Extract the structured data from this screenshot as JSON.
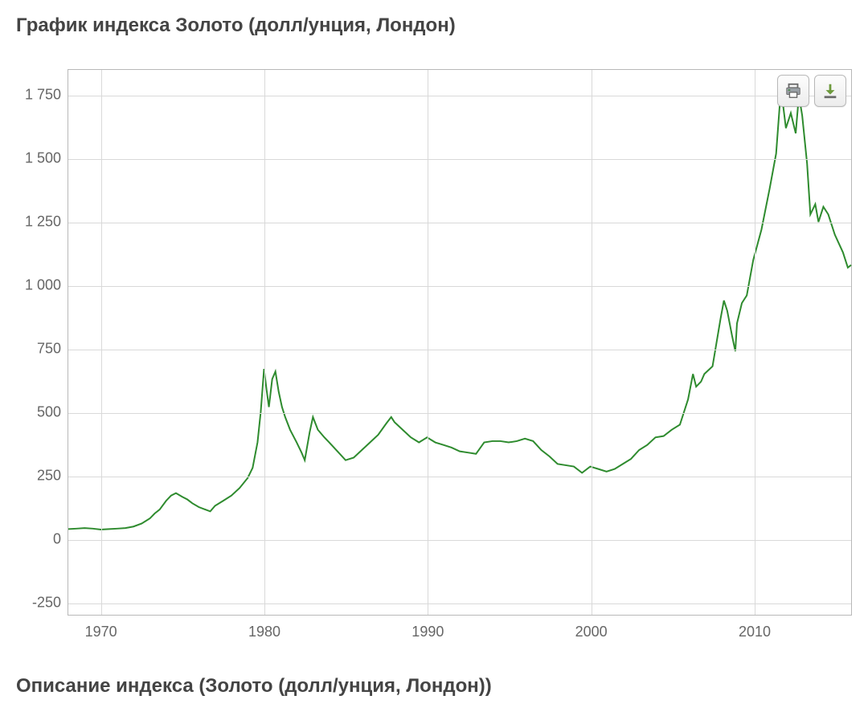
{
  "page": {
    "title": "График индекса Золото (долл/унция, Лондон)",
    "footer": "Описание индекса  (Золото (долл/унция, Лондон))"
  },
  "chart": {
    "type": "line",
    "line_color": "#2e8b2e",
    "line_width": 2,
    "background_color": "#ffffff",
    "border_color": "#b8b8b8",
    "grid_color": "#d9d9d9",
    "label_color": "#666666",
    "label_fontsize": 18,
    "xlim": [
      1968,
      2016
    ],
    "ylim": [
      -300,
      1850
    ],
    "yticks": [
      -250,
      0,
      250,
      500,
      750,
      1000,
      1250,
      1500,
      1750
    ],
    "ytick_labels": [
      "-250",
      "0",
      "250",
      "500",
      "750",
      "1 000",
      "1 250",
      "1 500",
      "1 750"
    ],
    "xticks": [
      1970,
      1980,
      1990,
      2000,
      2010
    ],
    "xtick_labels": [
      "1970",
      "1980",
      "1990",
      "2000",
      "2010"
    ],
    "series": [
      {
        "x": 1968.0,
        "y": 38
      },
      {
        "x": 1968.5,
        "y": 40
      },
      {
        "x": 1969.0,
        "y": 42
      },
      {
        "x": 1969.5,
        "y": 40
      },
      {
        "x": 1970.0,
        "y": 36
      },
      {
        "x": 1970.5,
        "y": 38
      },
      {
        "x": 1971.0,
        "y": 40
      },
      {
        "x": 1971.5,
        "y": 42
      },
      {
        "x": 1972.0,
        "y": 48
      },
      {
        "x": 1972.5,
        "y": 60
      },
      {
        "x": 1973.0,
        "y": 80
      },
      {
        "x": 1973.3,
        "y": 100
      },
      {
        "x": 1973.6,
        "y": 115
      },
      {
        "x": 1974.0,
        "y": 150
      },
      {
        "x": 1974.3,
        "y": 170
      },
      {
        "x": 1974.6,
        "y": 180
      },
      {
        "x": 1975.0,
        "y": 165
      },
      {
        "x": 1975.3,
        "y": 155
      },
      {
        "x": 1975.6,
        "y": 140
      },
      {
        "x": 1976.0,
        "y": 125
      },
      {
        "x": 1976.4,
        "y": 115
      },
      {
        "x": 1976.7,
        "y": 108
      },
      {
        "x": 1977.0,
        "y": 130
      },
      {
        "x": 1977.5,
        "y": 150
      },
      {
        "x": 1978.0,
        "y": 170
      },
      {
        "x": 1978.5,
        "y": 200
      },
      {
        "x": 1979.0,
        "y": 240
      },
      {
        "x": 1979.3,
        "y": 280
      },
      {
        "x": 1979.6,
        "y": 380
      },
      {
        "x": 1979.8,
        "y": 500
      },
      {
        "x": 1980.0,
        "y": 670
      },
      {
        "x": 1980.15,
        "y": 590
      },
      {
        "x": 1980.3,
        "y": 520
      },
      {
        "x": 1980.5,
        "y": 630
      },
      {
        "x": 1980.7,
        "y": 660
      },
      {
        "x": 1980.9,
        "y": 580
      },
      {
        "x": 1981.1,
        "y": 520
      },
      {
        "x": 1981.3,
        "y": 480
      },
      {
        "x": 1981.6,
        "y": 430
      },
      {
        "x": 1982.0,
        "y": 380
      },
      {
        "x": 1982.3,
        "y": 340
      },
      {
        "x": 1982.5,
        "y": 310
      },
      {
        "x": 1982.8,
        "y": 420
      },
      {
        "x": 1983.0,
        "y": 480
      },
      {
        "x": 1983.3,
        "y": 430
      },
      {
        "x": 1983.7,
        "y": 400
      },
      {
        "x": 1984.0,
        "y": 380
      },
      {
        "x": 1984.5,
        "y": 345
      },
      {
        "x": 1985.0,
        "y": 310
      },
      {
        "x": 1985.5,
        "y": 320
      },
      {
        "x": 1986.0,
        "y": 350
      },
      {
        "x": 1986.5,
        "y": 380
      },
      {
        "x": 1987.0,
        "y": 410
      },
      {
        "x": 1987.5,
        "y": 455
      },
      {
        "x": 1987.8,
        "y": 480
      },
      {
        "x": 1988.0,
        "y": 460
      },
      {
        "x": 1988.5,
        "y": 430
      },
      {
        "x": 1989.0,
        "y": 400
      },
      {
        "x": 1989.5,
        "y": 380
      },
      {
        "x": 1990.0,
        "y": 400
      },
      {
        "x": 1990.5,
        "y": 380
      },
      {
        "x": 1991.0,
        "y": 370
      },
      {
        "x": 1991.5,
        "y": 360
      },
      {
        "x": 1992.0,
        "y": 345
      },
      {
        "x": 1992.5,
        "y": 340
      },
      {
        "x": 1993.0,
        "y": 335
      },
      {
        "x": 1993.5,
        "y": 380
      },
      {
        "x": 1994.0,
        "y": 385
      },
      {
        "x": 1994.5,
        "y": 385
      },
      {
        "x": 1995.0,
        "y": 380
      },
      {
        "x": 1995.5,
        "y": 385
      },
      {
        "x": 1996.0,
        "y": 395
      },
      {
        "x": 1996.5,
        "y": 385
      },
      {
        "x": 1997.0,
        "y": 350
      },
      {
        "x": 1997.5,
        "y": 325
      },
      {
        "x": 1998.0,
        "y": 295
      },
      {
        "x": 1998.5,
        "y": 290
      },
      {
        "x": 1999.0,
        "y": 285
      },
      {
        "x": 1999.5,
        "y": 260
      },
      {
        "x": 2000.0,
        "y": 285
      },
      {
        "x": 2000.5,
        "y": 275
      },
      {
        "x": 2001.0,
        "y": 265
      },
      {
        "x": 2001.5,
        "y": 275
      },
      {
        "x": 2002.0,
        "y": 295
      },
      {
        "x": 2002.5,
        "y": 315
      },
      {
        "x": 2003.0,
        "y": 350
      },
      {
        "x": 2003.5,
        "y": 370
      },
      {
        "x": 2004.0,
        "y": 400
      },
      {
        "x": 2004.5,
        "y": 405
      },
      {
        "x": 2005.0,
        "y": 430
      },
      {
        "x": 2005.5,
        "y": 450
      },
      {
        "x": 2006.0,
        "y": 550
      },
      {
        "x": 2006.3,
        "y": 650
      },
      {
        "x": 2006.5,
        "y": 600
      },
      {
        "x": 2006.8,
        "y": 620
      },
      {
        "x": 2007.0,
        "y": 650
      },
      {
        "x": 2007.5,
        "y": 680
      },
      {
        "x": 2008.0,
        "y": 870
      },
      {
        "x": 2008.2,
        "y": 940
      },
      {
        "x": 2008.4,
        "y": 900
      },
      {
        "x": 2008.7,
        "y": 800
      },
      {
        "x": 2008.9,
        "y": 740
      },
      {
        "x": 2009.0,
        "y": 850
      },
      {
        "x": 2009.3,
        "y": 930
      },
      {
        "x": 2009.6,
        "y": 960
      },
      {
        "x": 2010.0,
        "y": 1100
      },
      {
        "x": 2010.5,
        "y": 1220
      },
      {
        "x": 2011.0,
        "y": 1380
      },
      {
        "x": 2011.4,
        "y": 1520
      },
      {
        "x": 2011.7,
        "y": 1780
      },
      {
        "x": 2011.85,
        "y": 1700
      },
      {
        "x": 2012.0,
        "y": 1620
      },
      {
        "x": 2012.3,
        "y": 1680
      },
      {
        "x": 2012.6,
        "y": 1600
      },
      {
        "x": 2012.8,
        "y": 1750
      },
      {
        "x": 2013.0,
        "y": 1670
      },
      {
        "x": 2013.3,
        "y": 1480
      },
      {
        "x": 2013.5,
        "y": 1280
      },
      {
        "x": 2013.8,
        "y": 1320
      },
      {
        "x": 2014.0,
        "y": 1250
      },
      {
        "x": 2014.3,
        "y": 1310
      },
      {
        "x": 2014.6,
        "y": 1280
      },
      {
        "x": 2015.0,
        "y": 1200
      },
      {
        "x": 2015.5,
        "y": 1130
      },
      {
        "x": 2015.8,
        "y": 1070
      },
      {
        "x": 2016.0,
        "y": 1080
      }
    ]
  }
}
